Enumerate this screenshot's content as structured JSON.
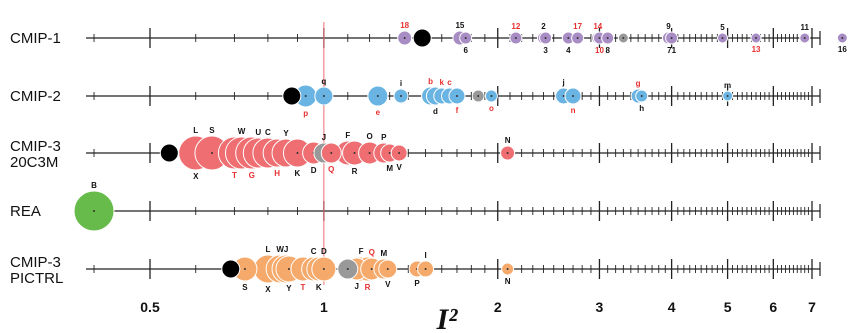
{
  "chart_data": {
    "type": "scatter",
    "title": "",
    "xlabel": "I²",
    "ylabel": "",
    "x_scale": "log",
    "xlim": [
      0.37,
      7.3
    ],
    "x_ticks": [
      {
        "value": 0.5,
        "label": "0.5"
      },
      {
        "value": 1,
        "label": "1"
      },
      {
        "value": 2,
        "label": "2"
      },
      {
        "value": 3,
        "label": "3"
      },
      {
        "value": 4,
        "label": "4"
      },
      {
        "value": 5,
        "label": "5"
      },
      {
        "value": 6,
        "label": "6"
      },
      {
        "value": 7,
        "label": "7"
      }
    ],
    "reference_line": 1,
    "colors": {
      "CMIP-1": "#a88cc4",
      "CMIP-2": "#6ab4e4",
      "CMIP-3 20C3M": "#ee6e72",
      "REA": "#66bb4a",
      "CMIP-3 PICTRL": "#f5a96a",
      "highlight": "#999999",
      "mean": "#000000",
      "label_red": "#e83030",
      "label_black": "#111111"
    },
    "rows": [
      {
        "name": "CMIP-1",
        "label_lines": [
          "CMIP-1"
        ],
        "points": [
          {
            "x": 1.38,
            "size": 0.35,
            "label": "18",
            "pos": "above",
            "label_color": "red"
          },
          {
            "x": 1.48,
            "size": 0.45,
            "label": "",
            "kind": "mean"
          },
          {
            "x": 1.72,
            "size": 0.35,
            "label": "15",
            "pos": "above",
            "label_color": "black"
          },
          {
            "x": 1.76,
            "size": 0.3,
            "label": "6",
            "pos": "below",
            "label_color": "black"
          },
          {
            "x": 2.15,
            "size": 0.3,
            "label": "12",
            "pos": "above",
            "label_color": "red"
          },
          {
            "x": 2.4,
            "size": 0.3,
            "label": "2",
            "pos": "above",
            "label_color": "black"
          },
          {
            "x": 2.42,
            "size": 0.3,
            "label": "3",
            "pos": "below",
            "label_color": "black"
          },
          {
            "x": 2.65,
            "size": 0.3,
            "label": "4",
            "pos": "below",
            "label_color": "black"
          },
          {
            "x": 2.75,
            "size": 0.3,
            "label": "17",
            "pos": "above",
            "label_color": "red"
          },
          {
            "x": 2.98,
            "size": 0.3,
            "label": "14",
            "pos": "above",
            "label_color": "red"
          },
          {
            "x": 3.0,
            "size": 0.3,
            "label": "10",
            "pos": "below",
            "label_color": "red"
          },
          {
            "x": 3.1,
            "size": 0.3,
            "label": "8",
            "pos": "below",
            "label_color": "black"
          },
          {
            "x": 3.3,
            "size": 0.25,
            "label": "",
            "kind": "highlight"
          },
          {
            "x": 3.95,
            "size": 0.3,
            "label": "9",
            "pos": "above",
            "label_color": "black"
          },
          {
            "x": 4.0,
            "size": 0.3,
            "label": "71",
            "pos": "below",
            "label_color": "black"
          },
          {
            "x": 4.9,
            "size": 0.25,
            "label": "5",
            "pos": "above",
            "label_color": "black"
          },
          {
            "x": 5.6,
            "size": 0.25,
            "label": "13",
            "pos": "below",
            "label_color": "red"
          },
          {
            "x": 6.8,
            "size": 0.25,
            "label": "11",
            "pos": "above",
            "label_color": "black"
          },
          {
            "x": 7.9,
            "size": 0.25,
            "label": "16",
            "pos": "below",
            "label_color": "black"
          }
        ]
      },
      {
        "name": "CMIP-2",
        "label_lines": [
          "CMIP-2"
        ],
        "points": [
          {
            "x": 0.88,
            "size": 0.45,
            "label": "",
            "kind": "mean"
          },
          {
            "x": 0.93,
            "size": 0.55,
            "label": "p",
            "pos": "below",
            "label_color": "red"
          },
          {
            "x": 1.0,
            "size": 0.45,
            "label": "q",
            "pos": "above",
            "label_color": "black"
          },
          {
            "x": 1.24,
            "size": 0.5,
            "label": "e",
            "pos": "below",
            "label_color": "red"
          },
          {
            "x": 1.36,
            "size": 0.35,
            "label": "i",
            "pos": "above",
            "label_color": "black"
          },
          {
            "x": 1.53,
            "size": 0.45,
            "label": "b",
            "pos": "above",
            "label_color": "red"
          },
          {
            "x": 1.56,
            "size": 0.45,
            "label": "d",
            "pos": "below",
            "label_color": "black"
          },
          {
            "x": 1.6,
            "size": 0.4,
            "label": "k",
            "pos": "above",
            "label_color": "red"
          },
          {
            "x": 1.65,
            "size": 0.4,
            "label": "c",
            "pos": "above",
            "label_color": "red"
          },
          {
            "x": 1.7,
            "size": 0.4,
            "label": "f",
            "pos": "below",
            "label_color": "red"
          },
          {
            "x": 1.85,
            "size": 0.3,
            "label": "",
            "kind": "highlight"
          },
          {
            "x": 1.95,
            "size": 0.3,
            "label": "o",
            "pos": "below",
            "label_color": "red"
          },
          {
            "x": 2.6,
            "size": 0.4,
            "label": "j",
            "pos": "above",
            "label_color": "black"
          },
          {
            "x": 2.7,
            "size": 0.4,
            "label": "n",
            "pos": "below",
            "label_color": "red"
          },
          {
            "x": 3.5,
            "size": 0.35,
            "label": "g",
            "pos": "above",
            "label_color": "red"
          },
          {
            "x": 3.55,
            "size": 0.3,
            "label": "h",
            "pos": "below",
            "label_color": "black"
          },
          {
            "x": 5.0,
            "size": 0.25,
            "label": "m",
            "pos": "above",
            "label_color": "black"
          }
        ]
      },
      {
        "name": "CMIP-3 20C3M",
        "label_lines": [
          "CMIP-3",
          "20C3M"
        ],
        "points": [
          {
            "x": 0.54,
            "size": 0.45,
            "label": "",
            "kind": "mean"
          },
          {
            "x": 0.6,
            "size": 0.85,
            "label": "X",
            "pos": "below",
            "label_color": "black"
          },
          {
            "x": 0.6,
            "size": 0.85,
            "label": "L",
            "pos": "above",
            "label_color": "black"
          },
          {
            "x": 0.64,
            "size": 0.85,
            "label": "S",
            "pos": "above",
            "label_color": "black"
          },
          {
            "x": 0.7,
            "size": 0.8,
            "label": "T",
            "pos": "below",
            "label_color": "red"
          },
          {
            "x": 0.72,
            "size": 0.8,
            "label": "W",
            "pos": "above",
            "label_color": "black"
          },
          {
            "x": 0.75,
            "size": 0.8,
            "label": "G",
            "pos": "below",
            "label_color": "red"
          },
          {
            "x": 0.77,
            "size": 0.75,
            "label": "U",
            "pos": "above",
            "label_color": "black"
          },
          {
            "x": 0.8,
            "size": 0.75,
            "label": "C",
            "pos": "above",
            "label_color": "black"
          },
          {
            "x": 0.83,
            "size": 0.7,
            "label": "H",
            "pos": "below",
            "label_color": "red"
          },
          {
            "x": 0.86,
            "size": 0.7,
            "label": "Y",
            "pos": "above",
            "label_color": "black"
          },
          {
            "x": 0.9,
            "size": 0.7,
            "label": "K",
            "pos": "below",
            "label_color": "black"
          },
          {
            "x": 0.96,
            "size": 0.55,
            "label": "D",
            "pos": "below",
            "label_color": "black"
          },
          {
            "x": 1.0,
            "size": 0.5,
            "label": "J",
            "pos": "above",
            "label_color": "black",
            "kind": "highlight"
          },
          {
            "x": 1.03,
            "size": 0.5,
            "label": "Q",
            "pos": "below",
            "label_color": "red"
          },
          {
            "x": 1.1,
            "size": 0.6,
            "label": "F",
            "pos": "above",
            "label_color": "black"
          },
          {
            "x": 1.13,
            "size": 0.6,
            "label": "R",
            "pos": "below",
            "label_color": "black"
          },
          {
            "x": 1.2,
            "size": 0.55,
            "label": "O",
            "pos": "above",
            "label_color": "black"
          },
          {
            "x": 1.27,
            "size": 0.5,
            "label": "P",
            "pos": "above",
            "label_color": "black"
          },
          {
            "x": 1.3,
            "size": 0.45,
            "label": "M",
            "pos": "below",
            "label_color": "black"
          },
          {
            "x": 1.35,
            "size": 0.4,
            "label": "V",
            "pos": "below",
            "label_color": "black"
          },
          {
            "x": 2.08,
            "size": 0.35,
            "label": "N",
            "pos": "above",
            "label_color": "black"
          }
        ]
      },
      {
        "name": "REA",
        "label_lines": [
          "REA"
        ],
        "points": [
          {
            "x": 0.4,
            "size": 1.0,
            "label": "B",
            "pos": "above",
            "label_color": "black"
          }
        ]
      },
      {
        "name": "CMIP-3 PICTRL",
        "label_lines": [
          "CMIP-3",
          "PICTRL"
        ],
        "points": [
          {
            "x": 0.69,
            "size": 0.45,
            "label": "",
            "kind": "mean"
          },
          {
            "x": 0.73,
            "size": 0.6,
            "label": "S",
            "pos": "below",
            "label_color": "black"
          },
          {
            "x": 0.8,
            "size": 0.7,
            "label": "X",
            "pos": "below",
            "label_color": "black"
          },
          {
            "x": 0.8,
            "size": 0.7,
            "label": "L",
            "pos": "above",
            "label_color": "black"
          },
          {
            "x": 0.84,
            "size": 0.7,
            "label": "W",
            "pos": "above",
            "label_color": "black"
          },
          {
            "x": 0.86,
            "size": 0.7,
            "label": "J",
            "pos": "above",
            "label_color": "black"
          },
          {
            "x": 0.87,
            "size": 0.65,
            "label": "Y",
            "pos": "below",
            "label_color": "black"
          },
          {
            "x": 0.92,
            "size": 0.6,
            "label": "T",
            "pos": "below",
            "label_color": "red"
          },
          {
            "x": 0.96,
            "size": 0.6,
            "label": "C",
            "pos": "above",
            "label_color": "black"
          },
          {
            "x": 0.98,
            "size": 0.6,
            "label": "K",
            "pos": "below",
            "label_color": "black"
          },
          {
            "x": 1.0,
            "size": 0.6,
            "label": "D",
            "pos": "above",
            "label_color": "black"
          },
          {
            "x": 1.1,
            "size": 0.5,
            "label": "",
            "kind": "highlight"
          },
          {
            "x": 1.14,
            "size": 0.55,
            "label": "J",
            "pos": "below",
            "label_color": "black"
          },
          {
            "x": 1.16,
            "size": 0.6,
            "label": "F",
            "pos": "above",
            "label_color": "black"
          },
          {
            "x": 1.19,
            "size": 0.6,
            "label": "R",
            "pos": "below",
            "label_color": "red"
          },
          {
            "x": 1.21,
            "size": 0.55,
            "label": "Q",
            "pos": "above",
            "label_color": "red"
          },
          {
            "x": 1.27,
            "size": 0.5,
            "label": "M",
            "pos": "above",
            "label_color": "black"
          },
          {
            "x": 1.29,
            "size": 0.45,
            "label": "V",
            "pos": "below",
            "label_color": "black"
          },
          {
            "x": 1.45,
            "size": 0.4,
            "label": "P",
            "pos": "below",
            "label_color": "black"
          },
          {
            "x": 1.5,
            "size": 0.4,
            "label": "I",
            "pos": "above",
            "label_color": "black"
          },
          {
            "x": 2.08,
            "size": 0.3,
            "label": "N",
            "pos": "below",
            "label_color": "black"
          }
        ]
      }
    ]
  }
}
